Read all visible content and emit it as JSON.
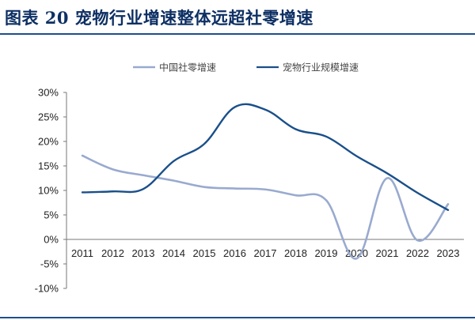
{
  "header": {
    "title": "图表 20  宠物行业增速整体远超社零增速"
  },
  "colors": {
    "rule": "#1f4e8c",
    "title": "#0d2f63"
  },
  "chart_data": {
    "type": "line",
    "title": "",
    "xlabel": "",
    "ylabel": "",
    "x": [
      "2011",
      "2012",
      "2013",
      "2014",
      "2015",
      "2016",
      "2017",
      "2018",
      "2019",
      "2020",
      "2021",
      "2022",
      "2023"
    ],
    "ylim": [
      -10,
      30
    ],
    "yticks": [
      -10,
      -5,
      0,
      5,
      10,
      15,
      20,
      25,
      30
    ],
    "ytick_labels": [
      "-10%",
      "-5%",
      "0%",
      "5%",
      "10%",
      "15%",
      "20%",
      "25%",
      "30%"
    ],
    "legend_position": "top-center",
    "grid": false,
    "series": [
      {
        "name": "中国社零增速",
        "color": "#99aacf",
        "smooth": true,
        "values": [
          17.1,
          14.3,
          13.1,
          12.0,
          10.7,
          10.4,
          10.2,
          9.0,
          8.0,
          -3.9,
          12.5,
          -0.2,
          7.2
        ]
      },
      {
        "name": "宠物行业规模增速",
        "color": "#1a4f8a",
        "smooth": true,
        "values": [
          9.6,
          9.8,
          10.3,
          16.0,
          19.5,
          27.0,
          26.5,
          22.5,
          21.0,
          17.0,
          13.5,
          9.5,
          6.0
        ]
      }
    ]
  }
}
